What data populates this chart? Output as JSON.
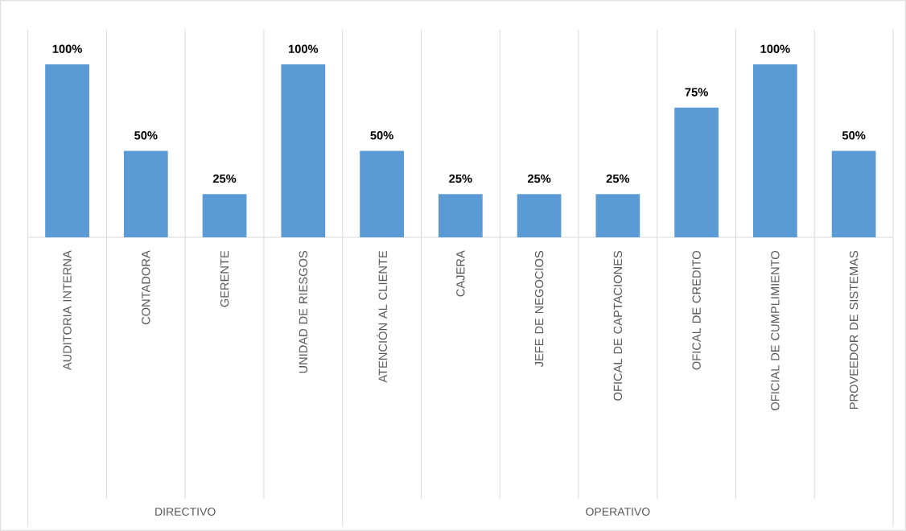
{
  "chart_data": {
    "type": "bar",
    "categories": [
      "AUDITORIA INTERNA",
      "CONTADORA",
      "GERENTE",
      "UNIDAD DE RIESGOS",
      "ATENCIÓN AL CLIENTE",
      "CAJERA",
      "JEFE DE NEGOCIOS",
      "OFICAL DE CAPTACIONES",
      "OFICAL DE CREDITO",
      "OFICIAL DE CUMPLIMIENTO",
      "PROVEEDOR DE SISTEMAS"
    ],
    "values": [
      100,
      50,
      25,
      100,
      50,
      25,
      25,
      25,
      75,
      100,
      50
    ],
    "value_labels": [
      "100%",
      "50%",
      "25%",
      "100%",
      "50%",
      "25%",
      "25%",
      "25%",
      "75%",
      "100%",
      "50%"
    ],
    "color": "#5b9bd5",
    "annotations": [
      "DIRECTIVO",
      "OPERATIVO"
    ]
  }
}
